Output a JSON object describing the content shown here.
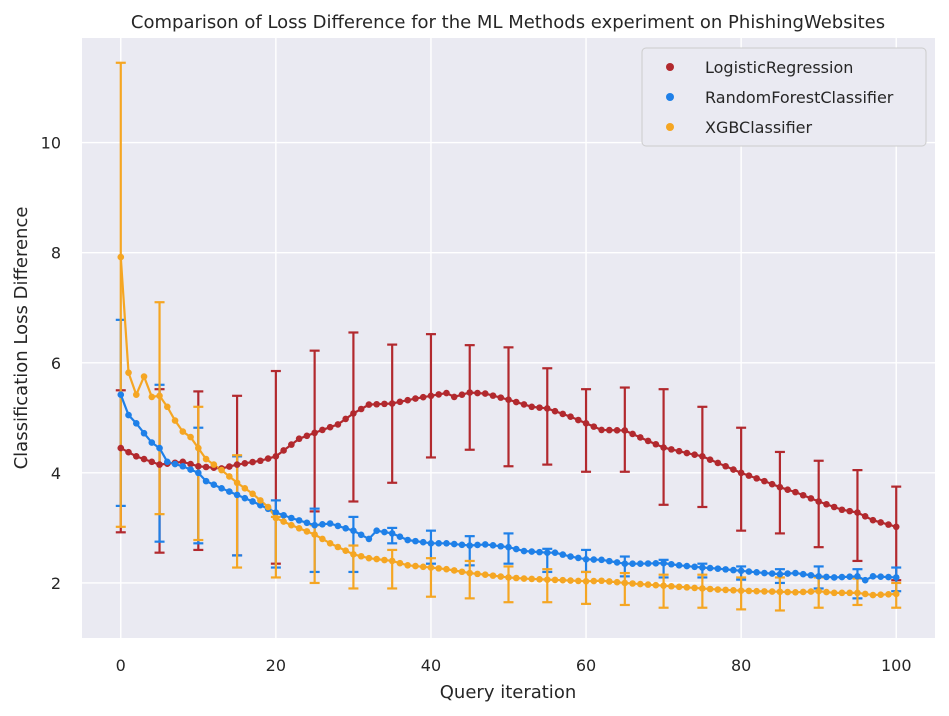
{
  "chart_data": {
    "type": "line",
    "title": "Comparison of Loss Difference for the ML Methods experiment on PhishingWebsites",
    "xlabel": "Query iteration",
    "ylabel": "Classification Loss Difference",
    "xlim": [
      -5,
      105
    ],
    "ylim": [
      1.0,
      11.9
    ],
    "xticks": [
      0,
      20,
      40,
      60,
      80,
      100
    ],
    "yticks": [
      2,
      4,
      6,
      8,
      10
    ],
    "grid": true,
    "legend_position": "top-right",
    "error_bar_interval": 5,
    "series": [
      {
        "name": "LogisticRegression",
        "color": "#b2292e",
        "keypoints": [
          [
            0,
            4.45
          ],
          [
            2,
            4.3
          ],
          [
            5,
            4.15
          ],
          [
            8,
            4.2
          ],
          [
            10,
            4.12
          ],
          [
            13,
            4.08
          ],
          [
            15,
            4.15
          ],
          [
            18,
            4.22
          ],
          [
            20,
            4.3
          ],
          [
            23,
            4.62
          ],
          [
            26,
            4.78
          ],
          [
            28,
            4.88
          ],
          [
            30,
            5.08
          ],
          [
            32,
            5.24
          ],
          [
            35,
            5.26
          ],
          [
            38,
            5.35
          ],
          [
            40,
            5.4
          ],
          [
            42,
            5.45
          ],
          [
            43,
            5.38
          ],
          [
            45,
            5.46
          ],
          [
            47,
            5.44
          ],
          [
            50,
            5.33
          ],
          [
            53,
            5.2
          ],
          [
            55,
            5.17
          ],
          [
            58,
            5.02
          ],
          [
            60,
            4.9
          ],
          [
            62,
            4.78
          ],
          [
            65,
            4.77
          ],
          [
            68,
            4.58
          ],
          [
            70,
            4.46
          ],
          [
            73,
            4.36
          ],
          [
            75,
            4.3
          ],
          [
            78,
            4.12
          ],
          [
            80,
            4.0
          ],
          [
            83,
            3.85
          ],
          [
            85,
            3.74
          ],
          [
            87,
            3.65
          ],
          [
            90,
            3.48
          ],
          [
            93,
            3.33
          ],
          [
            95,
            3.28
          ],
          [
            97,
            3.14
          ],
          [
            100,
            3.02
          ]
        ],
        "errors": [
          {
            "x": 0,
            "low": 2.92,
            "high": 5.5
          },
          {
            "x": 5,
            "low": 2.55,
            "high": 5.52
          },
          {
            "x": 10,
            "low": 2.6,
            "high": 5.48
          },
          {
            "x": 15,
            "low": 2.5,
            "high": 5.4
          },
          {
            "x": 20,
            "low": 2.35,
            "high": 5.85
          },
          {
            "x": 25,
            "low": 3.3,
            "high": 6.22
          },
          {
            "x": 30,
            "low": 3.48,
            "high": 6.55
          },
          {
            "x": 35,
            "low": 3.82,
            "high": 6.33
          },
          {
            "x": 40,
            "low": 4.28,
            "high": 6.52
          },
          {
            "x": 45,
            "low": 4.42,
            "high": 6.32
          },
          {
            "x": 50,
            "low": 4.12,
            "high": 6.28
          },
          {
            "x": 55,
            "low": 4.15,
            "high": 5.9
          },
          {
            "x": 60,
            "low": 4.02,
            "high": 5.52
          },
          {
            "x": 65,
            "low": 4.02,
            "high": 5.55
          },
          {
            "x": 70,
            "low": 3.42,
            "high": 5.52
          },
          {
            "x": 75,
            "low": 3.38,
            "high": 5.2
          },
          {
            "x": 80,
            "low": 2.95,
            "high": 4.82
          },
          {
            "x": 85,
            "low": 2.9,
            "high": 4.38
          },
          {
            "x": 90,
            "low": 2.65,
            "high": 4.22
          },
          {
            "x": 95,
            "low": 2.4,
            "high": 4.05
          },
          {
            "x": 100,
            "low": 2.05,
            "high": 3.75
          }
        ]
      },
      {
        "name": "RandomForestClassifier",
        "color": "#1f80e8",
        "keypoints": [
          [
            0,
            5.42
          ],
          [
            1,
            5.05
          ],
          [
            2,
            4.9
          ],
          [
            3,
            4.72
          ],
          [
            4,
            4.55
          ],
          [
            5,
            4.45
          ],
          [
            6,
            4.2
          ],
          [
            8,
            4.12
          ],
          [
            10,
            4.0
          ],
          [
            11,
            3.85
          ],
          [
            13,
            3.72
          ],
          [
            15,
            3.6
          ],
          [
            17,
            3.48
          ],
          [
            20,
            3.28
          ],
          [
            22,
            3.18
          ],
          [
            25,
            3.05
          ],
          [
            27,
            3.08
          ],
          [
            30,
            2.95
          ],
          [
            32,
            2.8
          ],
          [
            33,
            2.95
          ],
          [
            35,
            2.9
          ],
          [
            37,
            2.78
          ],
          [
            40,
            2.72
          ],
          [
            42,
            2.72
          ],
          [
            45,
            2.68
          ],
          [
            47,
            2.7
          ],
          [
            50,
            2.65
          ],
          [
            52,
            2.58
          ],
          [
            55,
            2.55
          ],
          [
            56,
            2.55
          ],
          [
            58,
            2.48
          ],
          [
            60,
            2.43
          ],
          [
            62,
            2.42
          ],
          [
            65,
            2.35
          ],
          [
            67,
            2.35
          ],
          [
            70,
            2.36
          ],
          [
            72,
            2.32
          ],
          [
            75,
            2.28
          ],
          [
            77,
            2.26
          ],
          [
            80,
            2.22
          ],
          [
            83,
            2.18
          ],
          [
            85,
            2.16
          ],
          [
            87,
            2.18
          ],
          [
            90,
            2.12
          ],
          [
            92,
            2.1
          ],
          [
            95,
            2.12
          ],
          [
            96,
            2.05
          ],
          [
            97,
            2.12
          ],
          [
            100,
            2.1
          ]
        ],
        "errors": [
          {
            "x": 0,
            "low": 3.4,
            "high": 6.78
          },
          {
            "x": 5,
            "low": 2.75,
            "high": 5.6
          },
          {
            "x": 10,
            "low": 2.72,
            "high": 4.82
          },
          {
            "x": 15,
            "low": 2.5,
            "high": 4.3
          },
          {
            "x": 20,
            "low": 2.28,
            "high": 3.5
          },
          {
            "x": 25,
            "low": 2.2,
            "high": 3.35
          },
          {
            "x": 30,
            "low": 2.2,
            "high": 3.2
          },
          {
            "x": 35,
            "low": 2.72,
            "high": 3.0
          },
          {
            "x": 40,
            "low": 2.35,
            "high": 2.95
          },
          {
            "x": 45,
            "low": 2.32,
            "high": 2.85
          },
          {
            "x": 50,
            "low": 2.35,
            "high": 2.9
          },
          {
            "x": 55,
            "low": 2.2,
            "high": 2.62
          },
          {
            "x": 60,
            "low": 2.2,
            "high": 2.6
          },
          {
            "x": 65,
            "low": 2.12,
            "high": 2.48
          },
          {
            "x": 70,
            "low": 2.1,
            "high": 2.42
          },
          {
            "x": 75,
            "low": 2.1,
            "high": 2.35
          },
          {
            "x": 80,
            "low": 2.06,
            "high": 2.3
          },
          {
            "x": 85,
            "low": 2.0,
            "high": 2.25
          },
          {
            "x": 90,
            "low": 1.9,
            "high": 2.3
          },
          {
            "x": 95,
            "low": 1.72,
            "high": 2.25
          },
          {
            "x": 100,
            "low": 1.85,
            "high": 2.28
          }
        ]
      },
      {
        "name": "XGBClassifier",
        "color": "#f5a623",
        "keypoints": [
          [
            0,
            7.92
          ],
          [
            1,
            5.82
          ],
          [
            2,
            5.42
          ],
          [
            3,
            5.75
          ],
          [
            4,
            5.38
          ],
          [
            5,
            5.4
          ],
          [
            6,
            5.2
          ],
          [
            7,
            4.95
          ],
          [
            8,
            4.75
          ],
          [
            9,
            4.65
          ],
          [
            10,
            4.45
          ],
          [
            11,
            4.25
          ],
          [
            12,
            4.15
          ],
          [
            13,
            4.05
          ],
          [
            15,
            3.82
          ],
          [
            17,
            3.62
          ],
          [
            19,
            3.38
          ],
          [
            20,
            3.18
          ],
          [
            22,
            3.05
          ],
          [
            25,
            2.88
          ],
          [
            27,
            2.72
          ],
          [
            30,
            2.52
          ],
          [
            32,
            2.45
          ],
          [
            35,
            2.4
          ],
          [
            37,
            2.32
          ],
          [
            40,
            2.28
          ],
          [
            42,
            2.25
          ],
          [
            45,
            2.18
          ],
          [
            47,
            2.15
          ],
          [
            50,
            2.1
          ],
          [
            52,
            2.08
          ],
          [
            55,
            2.06
          ],
          [
            57,
            2.05
          ],
          [
            60,
            2.03
          ],
          [
            62,
            2.04
          ],
          [
            65,
            2.0
          ],
          [
            67,
            1.98
          ],
          [
            70,
            1.95
          ],
          [
            72,
            1.93
          ],
          [
            75,
            1.9
          ],
          [
            77,
            1.88
          ],
          [
            80,
            1.86
          ],
          [
            82,
            1.85
          ],
          [
            85,
            1.84
          ],
          [
            87,
            1.83
          ],
          [
            90,
            1.85
          ],
          [
            92,
            1.82
          ],
          [
            95,
            1.82
          ],
          [
            97,
            1.78
          ],
          [
            100,
            1.8
          ]
        ],
        "errors": [
          {
            "x": 0,
            "low": 3.02,
            "high": 11.45
          },
          {
            "x": 5,
            "low": 3.25,
            "high": 7.1
          },
          {
            "x": 10,
            "low": 2.78,
            "high": 5.2
          },
          {
            "x": 15,
            "low": 2.28,
            "high": 4.32
          },
          {
            "x": 20,
            "low": 2.1,
            "high": 3.2
          },
          {
            "x": 25,
            "low": 2.0,
            "high": 3.05
          },
          {
            "x": 30,
            "low": 1.9,
            "high": 2.68
          },
          {
            "x": 35,
            "low": 1.9,
            "high": 2.6
          },
          {
            "x": 40,
            "low": 1.75,
            "high": 2.45
          },
          {
            "x": 45,
            "low": 1.72,
            "high": 2.4
          },
          {
            "x": 50,
            "low": 1.65,
            "high": 2.3
          },
          {
            "x": 55,
            "low": 1.65,
            "high": 2.25
          },
          {
            "x": 60,
            "low": 1.62,
            "high": 2.2
          },
          {
            "x": 65,
            "low": 1.6,
            "high": 2.18
          },
          {
            "x": 70,
            "low": 1.55,
            "high": 2.15
          },
          {
            "x": 75,
            "low": 1.55,
            "high": 2.15
          },
          {
            "x": 80,
            "low": 1.52,
            "high": 2.1
          },
          {
            "x": 85,
            "low": 1.5,
            "high": 2.1
          },
          {
            "x": 90,
            "low": 1.55,
            "high": 2.1
          },
          {
            "x": 95,
            "low": 1.6,
            "high": 2.08
          },
          {
            "x": 100,
            "low": 1.55,
            "high": 2.0
          }
        ]
      }
    ]
  }
}
